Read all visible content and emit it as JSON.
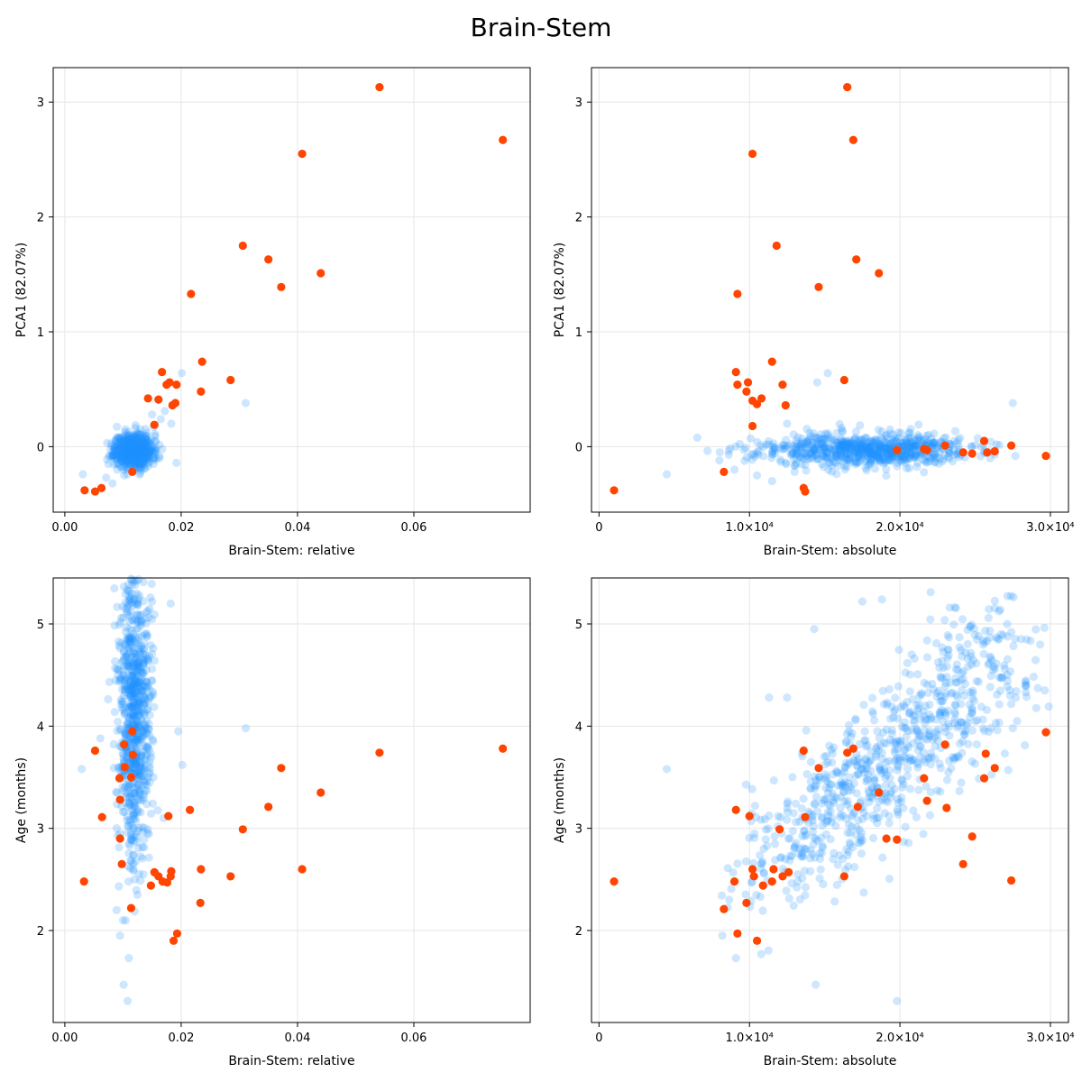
{
  "figure": {
    "title": "Brain-Stem"
  },
  "colors": {
    "background_points": "#1E90FF",
    "highlight_points": "#FF4500",
    "grid": "#e6e6e6",
    "frame": "#000000"
  },
  "chart_data": [
    {
      "type": "scatter",
      "xlabel": "Brain-Stem: relative",
      "ylabel": "PCA1 (82.07%)",
      "xlim": [
        -0.002,
        0.08
      ],
      "ylim": [
        -0.57,
        3.3
      ],
      "xticks": [
        0.0,
        0.02,
        0.04,
        0.06
      ],
      "xtick_labels": [
        "0.00",
        "0.02",
        "0.04",
        "0.06"
      ],
      "yticks": [
        0,
        1,
        2,
        3
      ],
      "ytick_labels": [
        "0",
        "1",
        "2",
        "3"
      ],
      "grid": true,
      "series": [
        {
          "role": "background",
          "color": "#1E90FF",
          "opacity": 0.22,
          "cluster": {
            "x_mean": 0.0118,
            "x_sd": 0.0016,
            "y_mean": -0.03,
            "y_sd": 0.07,
            "count": 750,
            "seed": 11
          },
          "points": [
            [
              0.0031,
              -0.24
            ],
            [
              0.0071,
              -0.27
            ],
            [
              0.0082,
              -0.32
            ],
            [
              0.0092,
              -0.15
            ],
            [
              0.015,
              0.28
            ],
            [
              0.0172,
              0.31
            ],
            [
              0.0183,
              0.2
            ],
            [
              0.0201,
              0.64
            ],
            [
              0.0311,
              0.38
            ],
            [
              0.0141,
              0.12
            ],
            [
              0.0153,
              0.17
            ],
            [
              0.0165,
              0.24
            ],
            [
              0.0102,
              -0.25
            ],
            [
              0.009,
              -0.2
            ],
            [
              0.013,
              0.15
            ]
          ]
        },
        {
          "role": "highlight",
          "color": "#FF4500",
          "points": [
            [
              0.0541,
              3.13
            ],
            [
              0.0753,
              2.67
            ],
            [
              0.0408,
              2.55
            ],
            [
              0.0306,
              1.75
            ],
            [
              0.035,
              1.63
            ],
            [
              0.044,
              1.51
            ],
            [
              0.0372,
              1.39
            ],
            [
              0.0217,
              1.33
            ],
            [
              0.0236,
              0.74
            ],
            [
              0.0167,
              0.65
            ],
            [
              0.018,
              0.56
            ],
            [
              0.0175,
              0.54
            ],
            [
              0.0192,
              0.54
            ],
            [
              0.0285,
              0.58
            ],
            [
              0.0234,
              0.48
            ],
            [
              0.0143,
              0.42
            ],
            [
              0.0161,
              0.41
            ],
            [
              0.019,
              0.38
            ],
            [
              0.0185,
              0.36
            ],
            [
              0.0154,
              0.19
            ],
            [
              0.0116,
              -0.22
            ],
            [
              0.0034,
              -0.38
            ],
            [
              0.0052,
              -0.39
            ],
            [
              0.0063,
              -0.36
            ]
          ]
        }
      ]
    },
    {
      "type": "scatter",
      "xlabel": "Brain-Stem: absolute",
      "ylabel": "PCA1 (82.07%)",
      "xlim": [
        -500,
        31200
      ],
      "ylim": [
        -0.57,
        3.3
      ],
      "xticks": [
        0,
        10000,
        20000,
        30000
      ],
      "xtick_labels": [
        "0",
        "1.0×10⁴",
        "2.0×10⁴",
        "3.0×10⁴"
      ],
      "yticks": [
        0,
        1,
        2,
        3
      ],
      "ytick_labels": [
        "0",
        "1",
        "2",
        "3"
      ],
      "grid": true,
      "series": [
        {
          "role": "background",
          "color": "#1E90FF",
          "opacity": 0.22,
          "cluster": {
            "x_mean": 17500,
            "x_sd": 3500,
            "y_mean": -0.03,
            "y_sd": 0.07,
            "count": 750,
            "seed": 23
          },
          "points": [
            [
              4500,
              -0.24
            ],
            [
              8000,
              -0.12
            ],
            [
              9000,
              -0.2
            ],
            [
              12500,
              0.2
            ],
            [
              14000,
              0.12
            ],
            [
              15200,
              0.64
            ],
            [
              14500,
              0.56
            ],
            [
              27500,
              0.38
            ],
            [
              26000,
              -0.1
            ],
            [
              11500,
              -0.3
            ],
            [
              10500,
              -0.25
            ],
            [
              13000,
              -0.22
            ]
          ]
        },
        {
          "role": "highlight",
          "color": "#FF4500",
          "points": [
            [
              16500,
              3.13
            ],
            [
              16900,
              2.67
            ],
            [
              10200,
              2.55
            ],
            [
              11800,
              1.75
            ],
            [
              17100,
              1.63
            ],
            [
              18600,
              1.51
            ],
            [
              14600,
              1.39
            ],
            [
              9200,
              1.33
            ],
            [
              11500,
              0.74
            ],
            [
              9100,
              0.65
            ],
            [
              9900,
              0.56
            ],
            [
              9200,
              0.54
            ],
            [
              12200,
              0.54
            ],
            [
              16300,
              0.58
            ],
            [
              9800,
              0.48
            ],
            [
              10200,
              0.4
            ],
            [
              10500,
              0.37
            ],
            [
              10800,
              0.42
            ],
            [
              12400,
              0.36
            ],
            [
              10200,
              0.18
            ],
            [
              8300,
              -0.22
            ],
            [
              1000,
              -0.38
            ],
            [
              13600,
              -0.36
            ],
            [
              13700,
              -0.39
            ],
            [
              25600,
              0.05
            ],
            [
              27400,
              0.01
            ],
            [
              29700,
              -0.08
            ],
            [
              23000,
              0.01
            ],
            [
              21600,
              -0.02
            ],
            [
              21800,
              -0.03
            ],
            [
              19800,
              -0.03
            ],
            [
              24200,
              -0.05
            ],
            [
              24800,
              -0.06
            ],
            [
              26300,
              -0.04
            ],
            [
              25800,
              -0.05
            ]
          ]
        }
      ]
    },
    {
      "type": "scatter",
      "xlabel": "Brain-Stem: relative",
      "ylabel": "Age (months)",
      "xlim": [
        -0.002,
        0.08
      ],
      "ylim": [
        1.1,
        5.45
      ],
      "xticks": [
        0.0,
        0.02,
        0.04,
        0.06
      ],
      "xtick_labels": [
        "0.00",
        "0.02",
        "0.04",
        "0.06"
      ],
      "yticks": [
        2,
        3,
        4,
        5
      ],
      "ytick_labels": [
        "2",
        "3",
        "4",
        "5"
      ],
      "grid": true,
      "series": [
        {
          "role": "background",
          "color": "#1E90FF",
          "opacity": 0.22,
          "cluster": {
            "x_mean": 0.012,
            "x_sd": 0.0014,
            "y_mean": 4.15,
            "y_sd": 0.7,
            "count": 800,
            "seed": 37
          },
          "points": [
            [
              0.0029,
              3.58
            ],
            [
              0.0061,
              3.88
            ],
            [
              0.0101,
              1.47
            ],
            [
              0.0108,
              1.31
            ],
            [
              0.011,
              1.73
            ],
            [
              0.0095,
              1.95
            ],
            [
              0.0311,
              3.98
            ],
            [
              0.0195,
              3.95
            ],
            [
              0.0202,
              3.62
            ],
            [
              0.0182,
              5.2
            ],
            [
              0.015,
              5.22
            ],
            [
              0.012,
              2.5
            ],
            [
              0.0118,
              2.6
            ],
            [
              0.0125,
              2.35
            ],
            [
              0.011,
              2.85
            ],
            [
              0.0095,
              2.95
            ],
            [
              0.0135,
              2.55
            ],
            [
              0.017,
              3.1
            ],
            [
              0.0089,
              2.2
            ]
          ]
        },
        {
          "role": "highlight",
          "color": "#FF4500",
          "points": [
            [
              0.0033,
              2.48
            ],
            [
              0.0052,
              3.76
            ],
            [
              0.0064,
              3.11
            ],
            [
              0.0094,
              3.49
            ],
            [
              0.0095,
              2.9
            ],
            [
              0.0095,
              3.28
            ],
            [
              0.0098,
              2.65
            ],
            [
              0.0102,
              3.82
            ],
            [
              0.0103,
              3.6
            ],
            [
              0.0114,
              3.5
            ],
            [
              0.0117,
              3.72
            ],
            [
              0.0116,
              3.95
            ],
            [
              0.0114,
              2.22
            ],
            [
              0.0148,
              2.44
            ],
            [
              0.0154,
              2.57
            ],
            [
              0.0161,
              2.53
            ],
            [
              0.0168,
              2.48
            ],
            [
              0.0176,
              2.47
            ],
            [
              0.0183,
              2.58
            ],
            [
              0.0182,
              2.53
            ],
            [
              0.0178,
              3.12
            ],
            [
              0.0187,
              1.9
            ],
            [
              0.0193,
              1.97
            ],
            [
              0.0215,
              3.18
            ],
            [
              0.0233,
              2.27
            ],
            [
              0.0234,
              2.6
            ],
            [
              0.0285,
              2.53
            ],
            [
              0.0306,
              2.99
            ],
            [
              0.035,
              3.21
            ],
            [
              0.0372,
              3.59
            ],
            [
              0.0408,
              2.6
            ],
            [
              0.044,
              3.35
            ],
            [
              0.0541,
              3.74
            ],
            [
              0.0753,
              3.78
            ]
          ]
        }
      ]
    },
    {
      "type": "scatter",
      "xlabel": "Brain-Stem: absolute",
      "ylabel": "Age (months)",
      "xlim": [
        -500,
        31200
      ],
      "ylim": [
        1.1,
        5.45
      ],
      "xticks": [
        0,
        10000,
        20000,
        30000
      ],
      "xtick_labels": [
        "0",
        "1.0×10⁴",
        "2.0×10⁴",
        "3.0×10⁴"
      ],
      "yticks": [
        2,
        3,
        4,
        5
      ],
      "ytick_labels": [
        "2",
        "3",
        "4",
        "5"
      ],
      "grid": true,
      "series": [
        {
          "role": "background",
          "color": "#1E90FF",
          "opacity": 0.22,
          "trend": {
            "x_from": 8500,
            "x_to": 27000,
            "y_from": 2.3,
            "y_to": 4.7,
            "y_sd": 0.35,
            "count": 800,
            "seed": 41
          },
          "points": [
            [
              4500,
              3.58
            ],
            [
              9100,
              1.73
            ],
            [
              8200,
              1.95
            ],
            [
              14400,
              1.47
            ],
            [
              19800,
              1.31
            ],
            [
              27500,
              3.98
            ],
            [
              27200,
              3.57
            ],
            [
              27400,
              4.92
            ],
            [
              17500,
              5.22
            ],
            [
              18800,
              5.24
            ],
            [
              11300,
              4.28
            ],
            [
              14300,
              4.95
            ],
            [
              12500,
              4.28
            ],
            [
              26500,
              4.85
            ]
          ]
        },
        {
          "role": "highlight",
          "color": "#FF4500",
          "points": [
            [
              1000,
              2.48
            ],
            [
              8300,
              2.21
            ],
            [
              9100,
              3.18
            ],
            [
              9000,
              2.48
            ],
            [
              9200,
              1.97
            ],
            [
              9800,
              2.27
            ],
            [
              10000,
              3.12
            ],
            [
              10200,
              2.6
            ],
            [
              10300,
              2.53
            ],
            [
              10500,
              1.9
            ],
            [
              10900,
              2.44
            ],
            [
              11500,
              2.48
            ],
            [
              11600,
              2.6
            ],
            [
              12000,
              2.99
            ],
            [
              12200,
              2.53
            ],
            [
              12600,
              2.57
            ],
            [
              13600,
              3.76
            ],
            [
              13700,
              3.11
            ],
            [
              14600,
              3.59
            ],
            [
              16300,
              2.53
            ],
            [
              16500,
              3.74
            ],
            [
              16900,
              3.78
            ],
            [
              17200,
              3.21
            ],
            [
              18600,
              3.35
            ],
            [
              19100,
              2.9
            ],
            [
              19800,
              2.89
            ],
            [
              21600,
              3.49
            ],
            [
              21800,
              3.27
            ],
            [
              23000,
              3.82
            ],
            [
              23100,
              3.2
            ],
            [
              24200,
              2.65
            ],
            [
              24800,
              2.92
            ],
            [
              25600,
              3.49
            ],
            [
              25700,
              3.73
            ],
            [
              26300,
              3.59
            ],
            [
              27400,
              2.49
            ],
            [
              29700,
              3.94
            ]
          ]
        }
      ]
    }
  ]
}
